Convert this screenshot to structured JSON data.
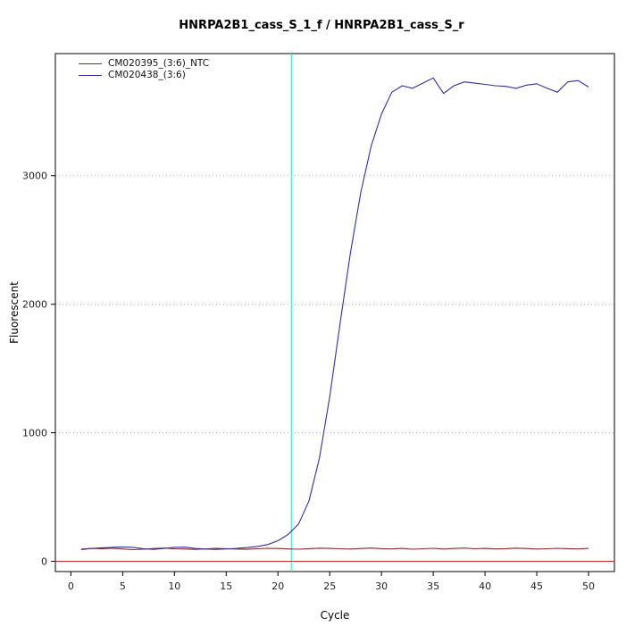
{
  "chart_data": {
    "type": "line",
    "title": "HNRPA2B1_cass_S_1_f / HNRPA2B1_cass_S_r",
    "xlabel": "Cycle",
    "ylabel": "Fluorescent",
    "xlim": [
      -1.5,
      52.5
    ],
    "ylim": [
      -80,
      3950
    ],
    "x_ticks": [
      0,
      5,
      10,
      15,
      20,
      25,
      30,
      35,
      40,
      45,
      50
    ],
    "y_ticks": [
      0,
      1000,
      2000,
      3000
    ],
    "grid": "horizontal dotted at y ticks",
    "legend_position": "top-left",
    "grid_color": "#b8b8b8",
    "threshold_vline": {
      "x": 21.3,
      "color": "#55E2E2"
    },
    "threshold_hline": {
      "y": 0,
      "color": "#CC2929"
    },
    "x": [
      1,
      2,
      3,
      4,
      5,
      6,
      7,
      8,
      9,
      10,
      11,
      12,
      13,
      14,
      15,
      16,
      17,
      18,
      19,
      20,
      21,
      22,
      23,
      24,
      25,
      26,
      27,
      28,
      29,
      30,
      31,
      32,
      33,
      34,
      35,
      36,
      37,
      38,
      39,
      40,
      41,
      42,
      43,
      44,
      45,
      46,
      47,
      48,
      49,
      50
    ],
    "series": [
      {
        "name": "CM020395_(3:6)_NTC",
        "color": "#8B2525",
        "values": [
          95,
          100,
          98,
          102,
          96,
          90,
          94,
          99,
          103,
          97,
          95,
          92,
          96,
          100,
          98,
          95,
          93,
          97,
          101,
          99,
          96,
          94,
          98,
          102,
          100,
          97,
          95,
          99,
          103,
          98,
          96,
          100,
          94,
          97,
          101,
          95,
          99,
          103,
          97,
          100,
          96,
          98,
          102,
          99,
          95,
          97,
          101,
          98,
          96,
          100
        ]
      },
      {
        "name": "CM020438_(3:6)",
        "color": "#30309C",
        "values": [
          90,
          100,
          105,
          108,
          112,
          108,
          98,
          92,
          100,
          108,
          110,
          100,
          95,
          92,
          96,
          100,
          106,
          115,
          130,
          160,
          210,
          290,
          470,
          800,
          1280,
          1850,
          2400,
          2870,
          3230,
          3480,
          3650,
          3700,
          3680,
          3720,
          3760,
          3640,
          3700,
          3730,
          3720,
          3710,
          3700,
          3695,
          3680,
          3705,
          3715,
          3680,
          3650,
          3730,
          3740,
          3690
        ]
      }
    ]
  }
}
